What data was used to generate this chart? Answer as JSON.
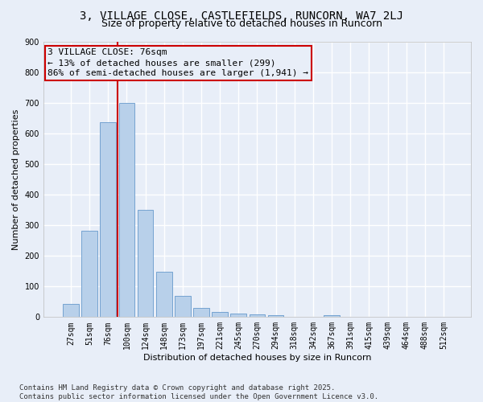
{
  "title_line1": "3, VILLAGE CLOSE, CASTLEFIELDS, RUNCORN, WA7 2LJ",
  "title_line2": "Size of property relative to detached houses in Runcorn",
  "xlabel": "Distribution of detached houses by size in Runcorn",
  "ylabel": "Number of detached properties",
  "categories": [
    "27sqm",
    "51sqm",
    "76sqm",
    "100sqm",
    "124sqm",
    "148sqm",
    "173sqm",
    "197sqm",
    "221sqm",
    "245sqm",
    "270sqm",
    "294sqm",
    "318sqm",
    "342sqm",
    "367sqm",
    "391sqm",
    "415sqm",
    "439sqm",
    "464sqm",
    "488sqm",
    "512sqm"
  ],
  "values": [
    42,
    283,
    635,
    700,
    350,
    147,
    68,
    30,
    17,
    12,
    10,
    7,
    0,
    0,
    7,
    0,
    0,
    0,
    0,
    0,
    0
  ],
  "bar_color": "#b8d0ea",
  "bar_edge_color": "#6699cc",
  "vline_x_index": 2,
  "vline_color": "#cc0000",
  "annotation_line1": "3 VILLAGE CLOSE: 76sqm",
  "annotation_line2": "← 13% of detached houses are smaller (299)",
  "annotation_line3": "86% of semi-detached houses are larger (1,941) →",
  "annotation_box_color": "#cc0000",
  "ylim": [
    0,
    900
  ],
  "yticks": [
    0,
    100,
    200,
    300,
    400,
    500,
    600,
    700,
    800,
    900
  ],
  "background_color": "#e8eef8",
  "grid_color": "#ffffff",
  "footer_text": "Contains HM Land Registry data © Crown copyright and database right 2025.\nContains public sector information licensed under the Open Government Licence v3.0.",
  "title_fontsize": 10,
  "subtitle_fontsize": 9,
  "axis_label_fontsize": 8,
  "tick_fontsize": 7,
  "annotation_fontsize": 8,
  "footer_fontsize": 6.5
}
